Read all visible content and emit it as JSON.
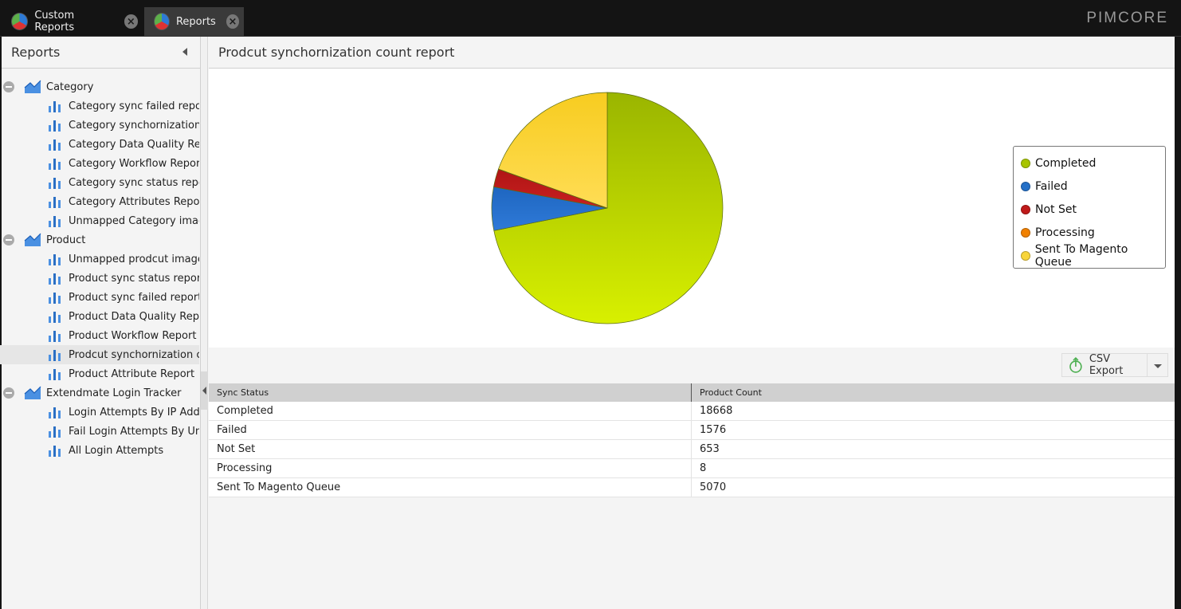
{
  "tabs": [
    {
      "label": "Custom Reports",
      "active": false
    },
    {
      "label": "Reports",
      "active": true
    }
  ],
  "brand": "PIMCORE",
  "sidebar": {
    "title": "Reports",
    "groups": [
      {
        "label": "Category",
        "items": [
          "Category sync failed report",
          "Category synchornization c",
          "Category Data Quality Repo",
          "Category Workflow Report",
          "Category sync status repor",
          "Category Attributes Report",
          "Unmapped Category image"
        ]
      },
      {
        "label": "Product",
        "items": [
          "Unmapped prodcut image",
          "Product sync status report",
          "Product sync failed report",
          "Product Data Quality Repor",
          "Product Workflow Report",
          "Prodcut synchornization co",
          "Product Attribute Report"
        ]
      },
      {
        "label": "Extendmate Login Tracker",
        "items": [
          "Login Attempts By IP Addre",
          "Fail Login Attempts By Unk",
          "All Login Attempts"
        ]
      }
    ],
    "selected": "Prodcut synchornization co"
  },
  "main": {
    "title": "Prodcut synchornization count report",
    "export_label": "CSV Export"
  },
  "chart_data": {
    "type": "pie",
    "title": "",
    "categories": [
      "Completed",
      "Failed",
      "Not Set",
      "Processing",
      "Sent To Magento Queue"
    ],
    "values": [
      18668,
      1576,
      653,
      8,
      5070
    ],
    "colors": [
      "#a7c400",
      "#2470c8",
      "#c01a1a",
      "#f08000",
      "#f8d53a"
    ],
    "legend": "right"
  },
  "table": {
    "headers": [
      "Sync Status",
      "Product Count"
    ],
    "rows": [
      [
        "Completed",
        "18668"
      ],
      [
        "Failed",
        "1576"
      ],
      [
        "Not Set",
        "653"
      ],
      [
        "Processing",
        "8"
      ],
      [
        "Sent To Magento Queue",
        "5070"
      ]
    ]
  }
}
